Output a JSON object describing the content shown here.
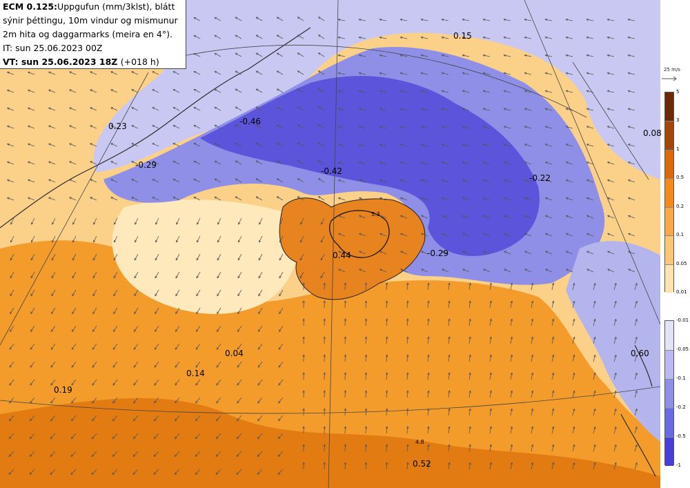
{
  "header": {
    "model": "ECM 0.125:",
    "line1_rest": "Uppgufun (mm/3klst), blátt",
    "line2": "sýnir þéttingu, 10m vindur og mismunur",
    "line3": "2m hita og daggarmarks (meira en 4°).",
    "line4": "IT: sun 25.06.2023 00Z",
    "line5_bold": "VT: sun 25.06.2023 18Z",
    "line5_rest": "(+018 h)"
  },
  "wind_reference": {
    "label": "25 m/s"
  },
  "colorbar_positive": {
    "ticks": [
      "5",
      "3",
      "1",
      "0.5",
      "0.2",
      "0.1",
      "0.05",
      "0.01"
    ],
    "colors": [
      "#6b2a06",
      "#a1470a",
      "#d96a0c",
      "#f28a1c",
      "#f7a94a",
      "#fbc776",
      "#fde3ad"
    ]
  },
  "colorbar_negative": {
    "ticks": [
      "-0.01",
      "-0.05",
      "-0.1",
      "-0.2",
      "-0.5",
      "-1"
    ],
    "colors": [
      "#e3e3f8",
      "#babaf1",
      "#8f8fe8",
      "#6a6ae2",
      "#4a3ed8"
    ]
  },
  "map_values": [
    {
      "text": "0.15"
    },
    {
      "text": "0.23"
    },
    {
      "text": "-0.46"
    },
    {
      "text": "0.08"
    },
    {
      "text": "-0.29"
    },
    {
      "text": "-0.42"
    },
    {
      "text": "-0.22"
    },
    {
      "text": "0.44"
    },
    {
      "text": "-0.29"
    },
    {
      "text": "0.04"
    },
    {
      "text": "0.14"
    },
    {
      "text": "0.19"
    },
    {
      "text": "0.60"
    },
    {
      "text": "0.52"
    }
  ],
  "contour_labels": [
    {
      "text": "5.3"
    },
    {
      "text": "4.8"
    }
  ]
}
